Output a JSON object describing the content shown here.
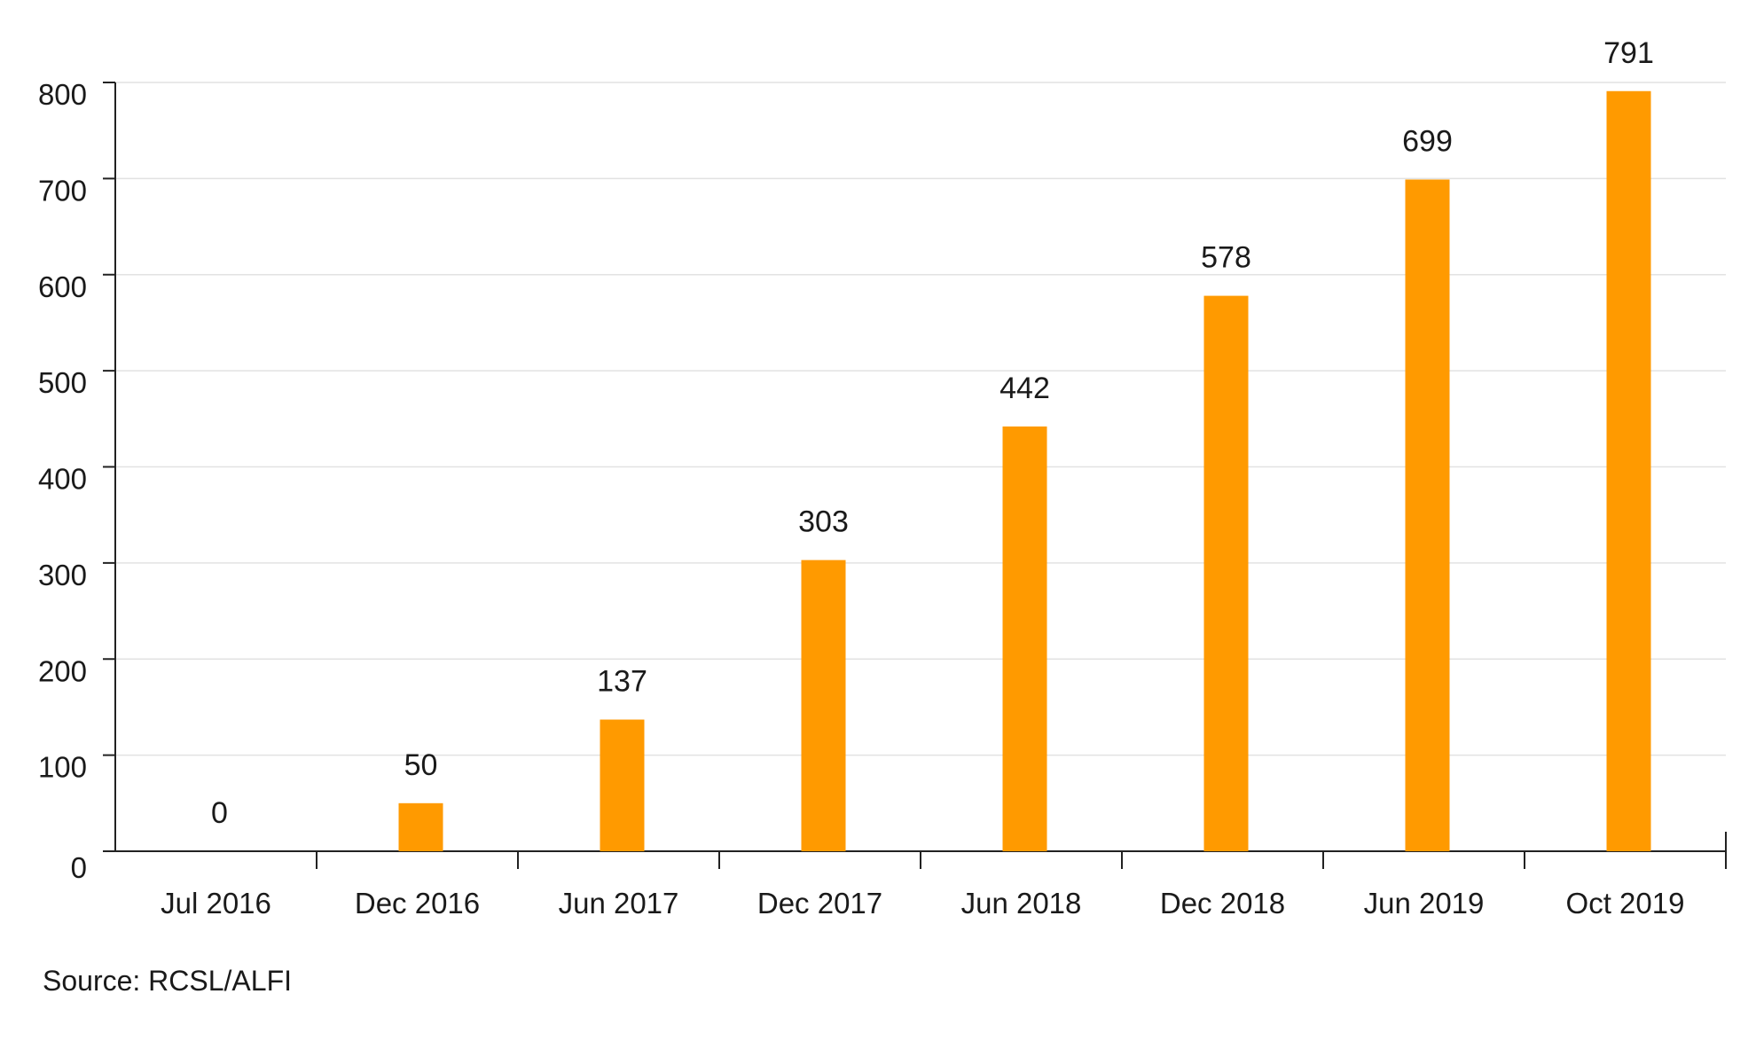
{
  "source_note": "Source: RCSL/ALFI",
  "chart_data": {
    "type": "bar",
    "title": "",
    "xlabel": "",
    "ylabel": "",
    "categories": [
      "Jul 2016",
      "Dec 2016",
      "Jun 2017",
      "Dec 2017",
      "Jun 2018",
      "Dec 2018",
      "Jun 2019",
      "Oct 2019"
    ],
    "values": [
      0,
      50,
      137,
      303,
      442,
      578,
      699,
      791
    ],
    "data_labels": [
      "0",
      "50",
      "137",
      "303",
      "442",
      "578",
      "699",
      "791"
    ],
    "ylim": [
      0,
      800
    ],
    "yticks": [
      0,
      100,
      200,
      300,
      400,
      500,
      600,
      700,
      800
    ],
    "ytick_labels": [
      "0",
      "100",
      "200",
      "300",
      "400",
      "500",
      "600",
      "700",
      "800"
    ],
    "grid": true,
    "legend": "none",
    "colors": {
      "bar": "#FF9A00",
      "grid": "#e2e2e2",
      "axis": "#222222"
    }
  }
}
